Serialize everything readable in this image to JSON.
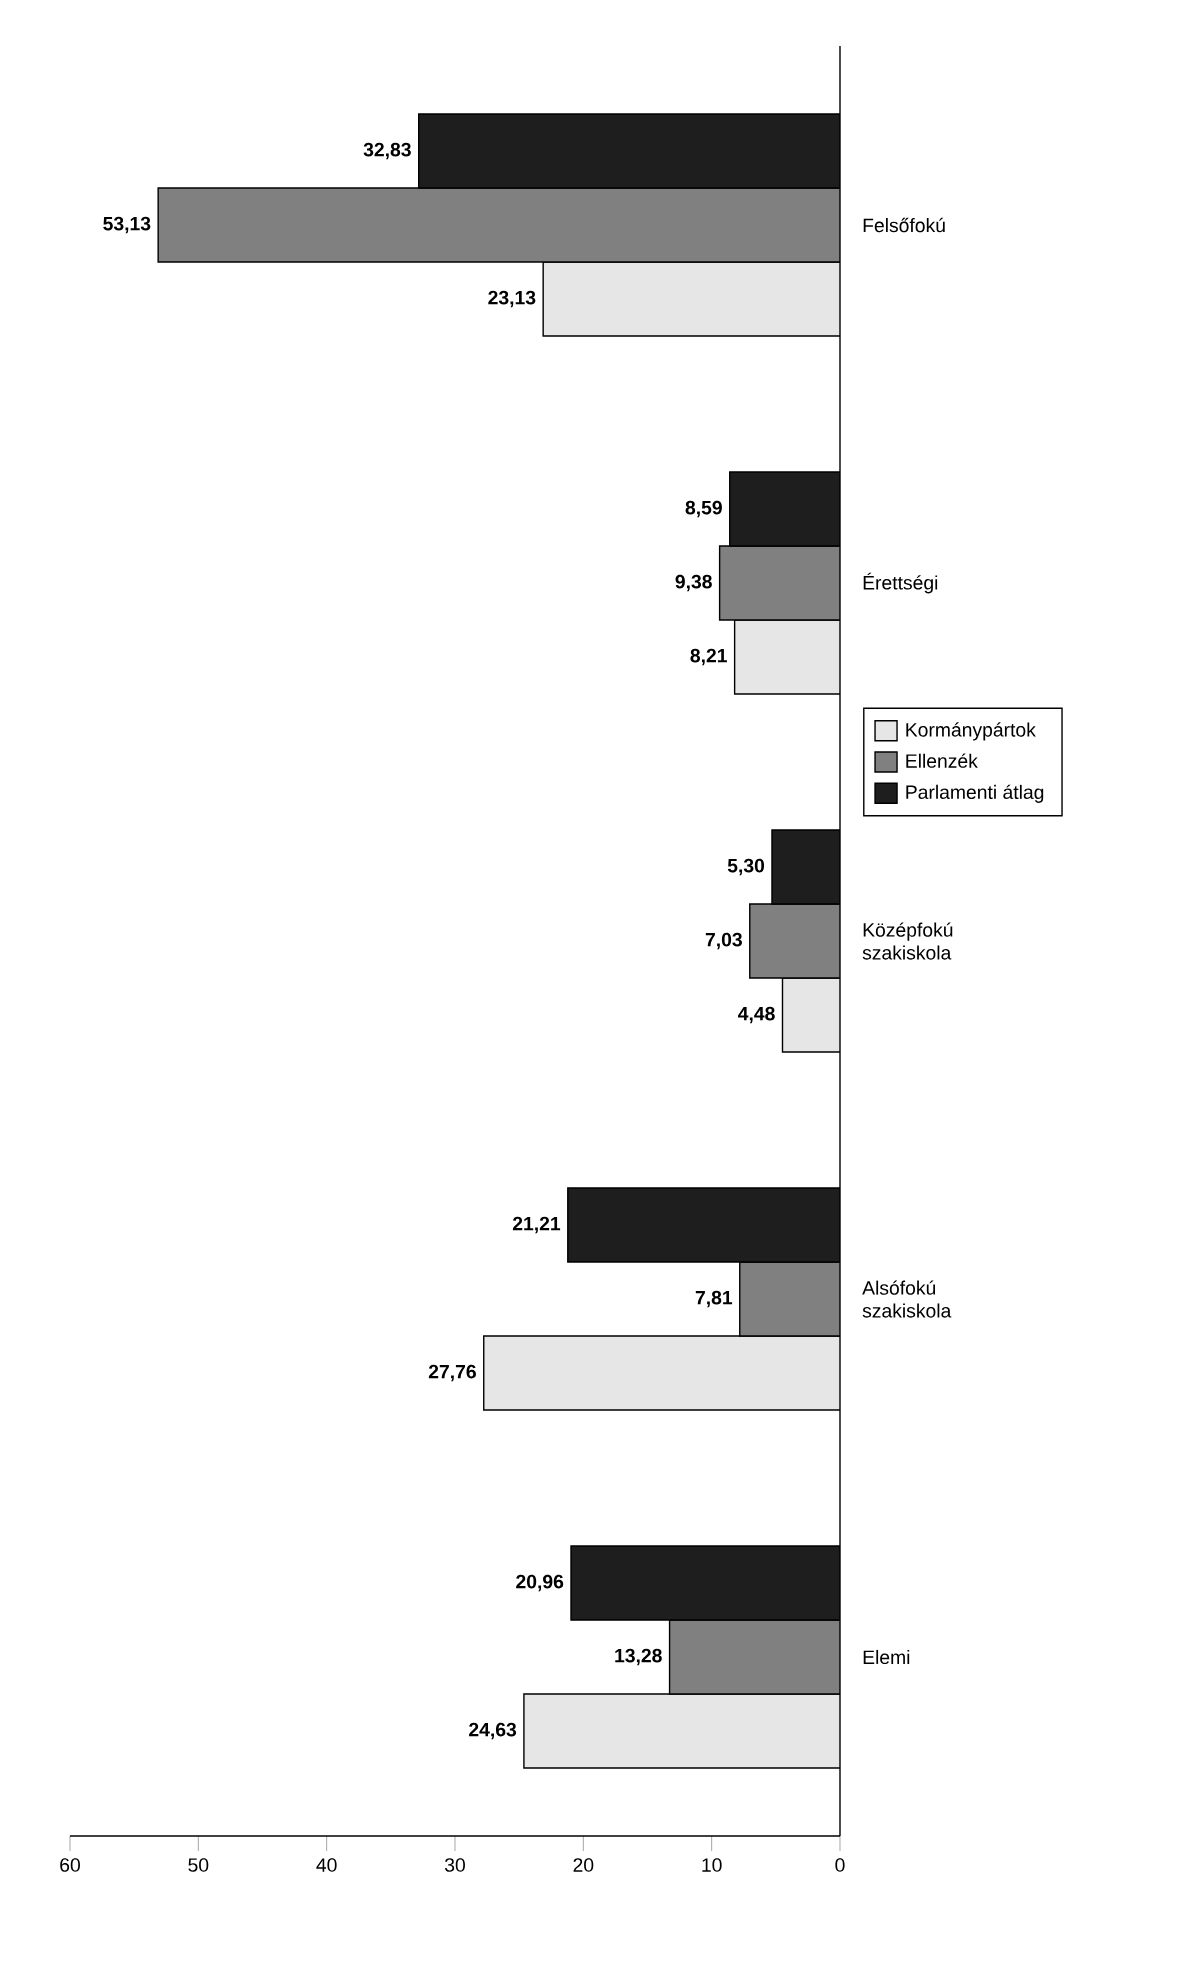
{
  "chart_data": {
    "type": "bar",
    "orientation": "horizontal",
    "categories": [
      "Felsőfokú",
      "Érettségi",
      "Középfokú szakiskola",
      "Alsófokú szakiskola",
      "Elemi"
    ],
    "series": [
      {
        "name": "Kormánypártok",
        "color": "#e6e6e6",
        "values": [
          23.13,
          8.21,
          4.48,
          27.76,
          24.63
        ],
        "value_labels": [
          "23,13",
          "8,21",
          "4,48",
          "27,76",
          "24,63"
        ]
      },
      {
        "name": "Ellenzék",
        "color": "#808080",
        "values": [
          53.13,
          9.38,
          7.03,
          7.81,
          13.28
        ],
        "value_labels": [
          "53,13",
          "9,38",
          "7,03",
          "7,81",
          "13,28"
        ]
      },
      {
        "name": "Parlamenti átlag",
        "color": "#1e1e1e",
        "values": [
          32.83,
          8.59,
          5.3,
          21.21,
          20.96
        ],
        "value_labels": [
          "32,83",
          "8,59",
          "5,30",
          "21,21",
          "20,96"
        ]
      }
    ],
    "xlim": [
      60,
      0
    ],
    "xticks": [
      60,
      50,
      40,
      30,
      20,
      10,
      0
    ],
    "legend": "right",
    "grid": false
  }
}
